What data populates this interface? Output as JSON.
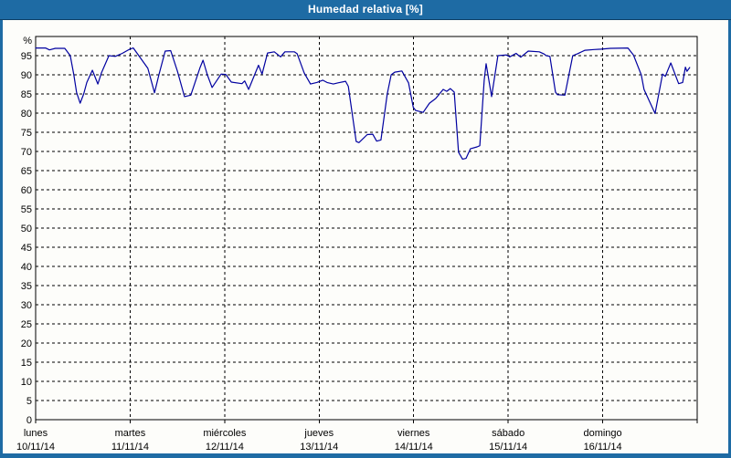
{
  "window": {
    "title": "Humedad relativa [%]"
  },
  "colors": {
    "frame": "#1e6ba4",
    "frame_border": "#0d3f66",
    "panel_bg": "#fdfdfa",
    "plot_border": "#000000",
    "grid": "#000000",
    "label_text": "#000000",
    "title_text": "#ffffff",
    "series_line": "#0000a0"
  },
  "chart_data": {
    "type": "line",
    "title": "Humedad relativa [%]",
    "ylabel": "%",
    "ylim": [
      0,
      100
    ],
    "ytick_step": 5,
    "ytick_label_max": 95,
    "grid": "dashed",
    "legend": "none",
    "x_unit": "hours since lunes 10/11/14 00:00",
    "xlim": [
      0,
      168
    ],
    "day_ticks": [
      {
        "hour": 0,
        "day": "lunes",
        "date": "10/11/14"
      },
      {
        "hour": 24,
        "day": "martes",
        "date": "11/11/14"
      },
      {
        "hour": 48,
        "day": "miércoles",
        "date": "12/11/14"
      },
      {
        "hour": 72,
        "day": "jueves",
        "date": "13/11/14"
      },
      {
        "hour": 96,
        "day": "viernes",
        "date": "14/11/14"
      },
      {
        "hour": 120,
        "day": "sábado",
        "date": "15/11/14"
      },
      {
        "hour": 144,
        "day": "domingo",
        "date": "16/11/14"
      }
    ],
    "series": [
      {
        "name": "Humedad relativa [%]",
        "color": "#0000a0",
        "points": [
          [
            0,
            97
          ],
          [
            2.5,
            97
          ],
          [
            3.5,
            96.5
          ],
          [
            5,
            96.9
          ],
          [
            7.4,
            96.9
          ],
          [
            8.8,
            95
          ],
          [
            9.7,
            90
          ],
          [
            10.4,
            85.4
          ],
          [
            11.3,
            82.6
          ],
          [
            12.2,
            85
          ],
          [
            13,
            88
          ],
          [
            14.4,
            91.2
          ],
          [
            15.8,
            87.6
          ],
          [
            16.7,
            90.5
          ],
          [
            18.6,
            95
          ],
          [
            20.2,
            94.8
          ],
          [
            22,
            95.6
          ],
          [
            23.9,
            96.7
          ],
          [
            24.8,
            97
          ],
          [
            26.2,
            95
          ],
          [
            28.5,
            91.7
          ],
          [
            30.2,
            85.3
          ],
          [
            31.3,
            90
          ],
          [
            32.9,
            96.2
          ],
          [
            34.3,
            96.3
          ],
          [
            36,
            91
          ],
          [
            37.8,
            84.3
          ],
          [
            39.4,
            84.7
          ],
          [
            41.8,
            92
          ],
          [
            42.5,
            93.8
          ],
          [
            43.6,
            90
          ],
          [
            44.8,
            86.7
          ],
          [
            47.1,
            90.2
          ],
          [
            48.3,
            90.1
          ],
          [
            49.7,
            88.1
          ],
          [
            52.4,
            87.7
          ],
          [
            53.1,
            88.4
          ],
          [
            54.1,
            86.2
          ],
          [
            56.6,
            92.5
          ],
          [
            57.5,
            90.2
          ],
          [
            58.9,
            95.7
          ],
          [
            60.6,
            96
          ],
          [
            62.2,
            94.7
          ],
          [
            63.3,
            96
          ],
          [
            65.7,
            96
          ],
          [
            66.4,
            95.5
          ],
          [
            68.2,
            90.5
          ],
          [
            69.8,
            87.6
          ],
          [
            71.4,
            88
          ],
          [
            72.9,
            88.6
          ],
          [
            74,
            88
          ],
          [
            75.6,
            87.6
          ],
          [
            76.8,
            87.9
          ],
          [
            78.7,
            88.3
          ],
          [
            79.4,
            87
          ],
          [
            81.4,
            72.6
          ],
          [
            82.1,
            72.3
          ],
          [
            84.2,
            74.4
          ],
          [
            85.6,
            74.5
          ],
          [
            86.6,
            72.7
          ],
          [
            87.7,
            73
          ],
          [
            89.3,
            85
          ],
          [
            90.3,
            90
          ],
          [
            91.2,
            90.7
          ],
          [
            93,
            91
          ],
          [
            94.7,
            87.9
          ],
          [
            95.9,
            81.5
          ],
          [
            96.5,
            80.7
          ],
          [
            98.4,
            80.2
          ],
          [
            100,
            82.6
          ],
          [
            101.6,
            83.8
          ],
          [
            103.5,
            86.2
          ],
          [
            104.4,
            85.7
          ],
          [
            105.3,
            86.4
          ],
          [
            106.3,
            85.5
          ],
          [
            107.4,
            69.8
          ],
          [
            108.4,
            68
          ],
          [
            109.3,
            68.2
          ],
          [
            110.4,
            70.7
          ],
          [
            112.1,
            71.2
          ],
          [
            112.8,
            71.5
          ],
          [
            113.9,
            88.6
          ],
          [
            114.4,
            92.9
          ],
          [
            115.8,
            84.3
          ],
          [
            117.4,
            95
          ],
          [
            119.5,
            95.2
          ],
          [
            120.4,
            94.7
          ],
          [
            122,
            95.6
          ],
          [
            123.2,
            94.6
          ],
          [
            125.1,
            96.2
          ],
          [
            127.9,
            96
          ],
          [
            129,
            95.5
          ],
          [
            129.7,
            95
          ],
          [
            130.6,
            94.8
          ],
          [
            132,
            85.5
          ],
          [
            132.5,
            84.8
          ],
          [
            134.4,
            84.7
          ],
          [
            136.4,
            95
          ],
          [
            137.6,
            95.5
          ],
          [
            139.5,
            96.4
          ],
          [
            141.8,
            96.6
          ],
          [
            143.6,
            96.7
          ],
          [
            145.9,
            96.9
          ],
          [
            150.4,
            97
          ],
          [
            151.8,
            95.2
          ],
          [
            153.8,
            90
          ],
          [
            154.5,
            86.2
          ],
          [
            155.9,
            83
          ],
          [
            157.3,
            79.9
          ],
          [
            159.2,
            90.2
          ],
          [
            159.9,
            89.6
          ],
          [
            161.3,
            93.1
          ],
          [
            163.3,
            87.7
          ],
          [
            164.3,
            88
          ],
          [
            165,
            92
          ],
          [
            165.4,
            90.9
          ],
          [
            166.1,
            91.9
          ]
        ]
      }
    ]
  }
}
